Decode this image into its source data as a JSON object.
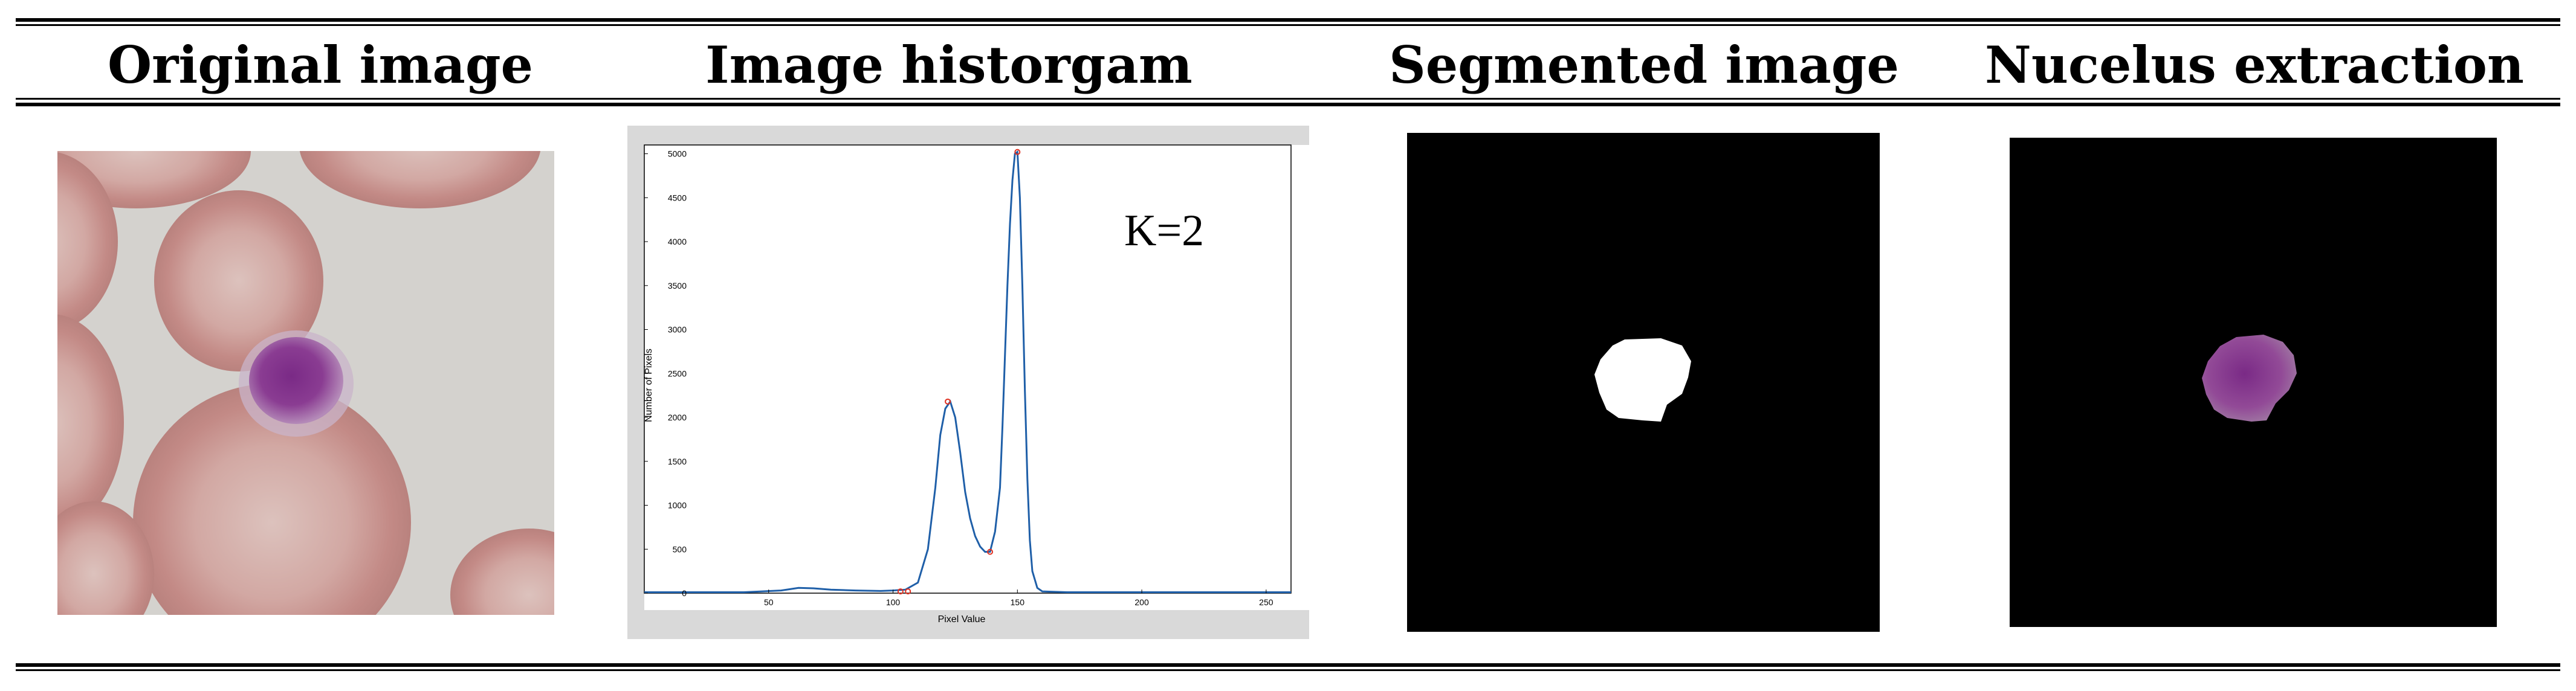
{
  "table": {
    "headers": [
      "Original image",
      "Image historgam",
      "Segmented image",
      "Nucelus extraction"
    ]
  },
  "histogram": {
    "k_label": "K=2",
    "xlabel": "Pixel Value",
    "ylabel": "Number of Pixels"
  },
  "chart_data": {
    "type": "line",
    "title": "",
    "xlabel": "Pixel Value",
    "ylabel": "Number of Pixels",
    "xlim": [
      0,
      260
    ],
    "ylim": [
      0,
      5100
    ],
    "x_ticks": [
      50,
      100,
      150,
      200,
      250
    ],
    "y_ticks": [
      0,
      500,
      1000,
      1500,
      2000,
      2500,
      3000,
      3500,
      4000,
      4500,
      5000
    ],
    "annotation": "K=2",
    "series": [
      {
        "x": [
          0,
          40,
          55,
          62,
          68,
          75,
          85,
          95,
          100,
          105,
          110,
          114,
          117,
          119,
          121,
          123,
          125,
          127,
          129,
          131,
          133,
          135,
          137,
          139,
          141,
          143,
          144,
          145,
          146,
          147,
          148,
          149,
          150,
          151,
          152,
          153,
          154,
          155,
          156,
          158,
          160,
          170,
          200,
          260
        ],
        "values": [
          10,
          10,
          30,
          60,
          55,
          40,
          30,
          25,
          30,
          40,
          120,
          500,
          1200,
          1800,
          2100,
          2180,
          2000,
          1600,
          1150,
          850,
          650,
          530,
          470,
          470,
          700,
          1200,
          1900,
          2700,
          3500,
          4200,
          4700,
          5000,
          5020,
          4500,
          3500,
          2300,
          1300,
          600,
          250,
          60,
          20,
          10,
          10,
          10
        ]
      }
    ],
    "markers": [
      {
        "x": 103,
        "y": 20
      },
      {
        "x": 106,
        "y": 20
      },
      {
        "x": 122,
        "y": 2180
      },
      {
        "x": 139,
        "y": 470
      },
      {
        "x": 150,
        "y": 5020
      }
    ]
  },
  "colors": {
    "line": "#1f5fa8",
    "marker": "#e03020",
    "figure_bg": "#d9d9d9",
    "mask": "#ffffff",
    "nucleus": "#8e3f8f",
    "cell_bg": "#d5d3d0",
    "rbc": "#c99490"
  }
}
